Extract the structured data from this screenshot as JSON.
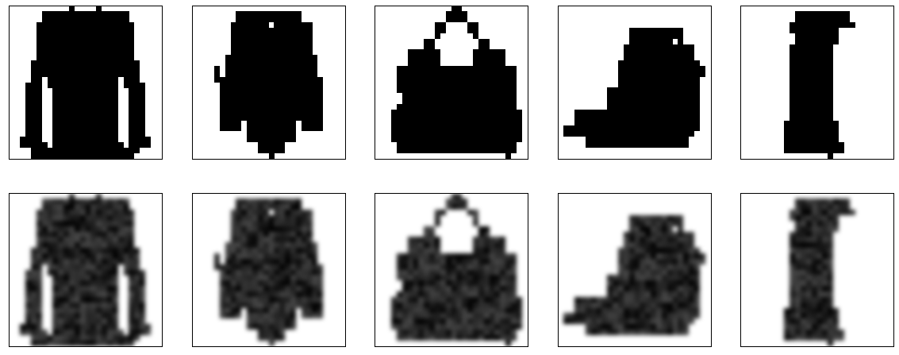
{
  "figure": {
    "rows": [
      {
        "name": "binary-input",
        "items": [
          "long-sleeve-top",
          "bodysuit",
          "handbag",
          "ankle-boot",
          "dress"
        ]
      },
      {
        "name": "reconstruction",
        "items": [
          "long-sleeve-top",
          "bodysuit",
          "handbag",
          "ankle-boot",
          "dress"
        ]
      }
    ],
    "colors": {
      "ink": "#000000",
      "background": "#ffffff",
      "frame": "#000000"
    }
  }
}
